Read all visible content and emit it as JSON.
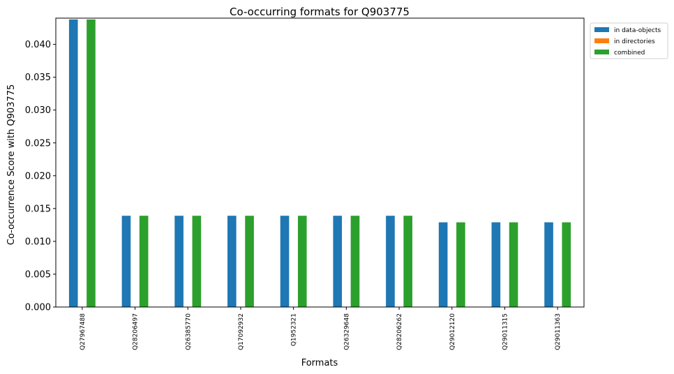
{
  "chart_data": {
    "type": "bar",
    "title": "Co-occurring formats for Q903775",
    "xlabel": "Formats",
    "ylabel": "Co-occurrence Score with Q903775",
    "ylim": [
      0,
      0.044
    ],
    "yticks": [
      "0.000",
      "0.005",
      "0.010",
      "0.015",
      "0.020",
      "0.025",
      "0.030",
      "0.035",
      "0.040"
    ],
    "ytick_values": [
      0,
      0.005,
      0.01,
      0.015,
      0.02,
      0.025,
      0.03,
      0.035,
      0.04
    ],
    "grid": false,
    "legend_position": "outside-top-right",
    "categories": [
      "Q27967488",
      "Q28206497",
      "Q26385770",
      "Q17092932",
      "Q1952321",
      "Q26329648",
      "Q28206262",
      "Q29012120",
      "Q29011315",
      "Q29011363"
    ],
    "series": [
      {
        "name": "in data-objects",
        "color": "#1f77b4",
        "values": [
          0.0438,
          0.0139,
          0.0139,
          0.0139,
          0.0139,
          0.0139,
          0.0139,
          0.0129,
          0.0129,
          0.0129
        ]
      },
      {
        "name": "in directories",
        "color": "#ff7f0e",
        "values": [
          0,
          0,
          0,
          0,
          0,
          0,
          0,
          0,
          0,
          0
        ]
      },
      {
        "name": "combined",
        "color": "#2ca02c",
        "values": [
          0.0438,
          0.0139,
          0.0139,
          0.0139,
          0.0139,
          0.0139,
          0.0139,
          0.0129,
          0.0129,
          0.0129
        ]
      }
    ]
  }
}
